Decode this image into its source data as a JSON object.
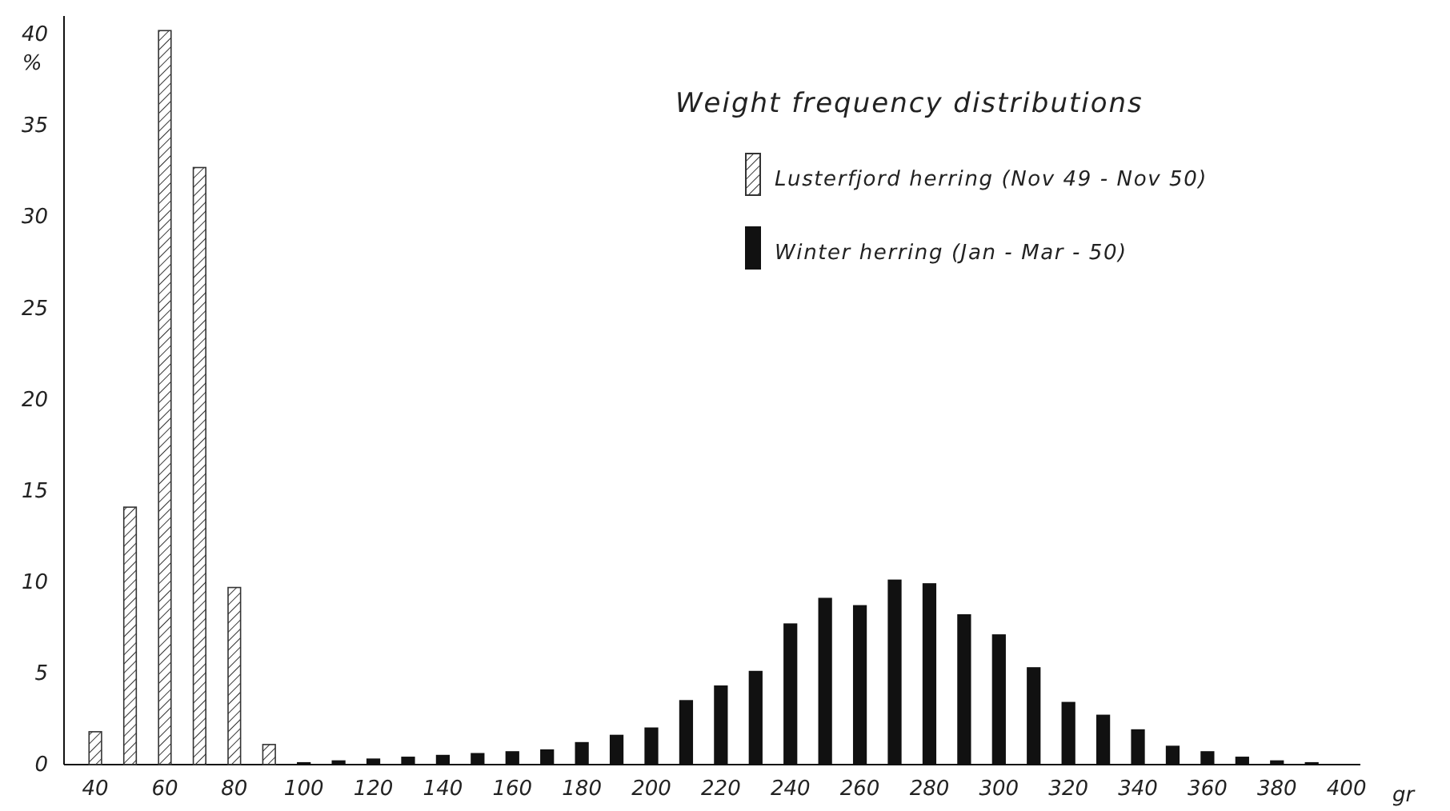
{
  "chart_data": {
    "type": "bar",
    "xlabel": "gr",
    "ylabel": "%",
    "legend_title": "Weight frequency distributions",
    "legend": "top right",
    "grid": false,
    "xlim": [
      31,
      404
    ],
    "xticks": [
      40,
      60,
      80,
      100,
      120,
      140,
      160,
      180,
      200,
      220,
      240,
      260,
      280,
      300,
      320,
      340,
      360,
      380,
      400
    ],
    "ylim": [
      0,
      41
    ],
    "yticks": [
      0,
      5,
      10,
      15,
      20,
      25,
      30,
      35,
      40
    ],
    "series": [
      {
        "name": "Lusterfjord herring (Nov 49 - Nov 50)",
        "color": "#333333",
        "x": [
          40,
          50,
          60,
          70,
          80,
          90
        ],
        "values": [
          1.8,
          14.1,
          40.2,
          32.7,
          9.7,
          1.1
        ]
      },
      {
        "name": "Winter herring (Jan - Mar - 50)",
        "color": "#111111",
        "x": [
          100,
          110,
          120,
          130,
          140,
          150,
          160,
          170,
          180,
          190,
          200,
          210,
          220,
          230,
          240,
          250,
          260,
          270,
          280,
          290,
          300,
          310,
          320,
          330,
          340,
          350,
          360,
          370,
          380,
          390
        ],
        "values": [
          0.1,
          0.2,
          0.3,
          0.4,
          0.5,
          0.6,
          0.7,
          0.8,
          1.2,
          1.6,
          2.0,
          3.5,
          4.3,
          5.1,
          7.7,
          9.1,
          8.7,
          10.1,
          9.9,
          8.2,
          7.1,
          5.3,
          3.4,
          2.7,
          1.9,
          1.0,
          0.7,
          0.4,
          0.2,
          0.1
        ]
      }
    ]
  }
}
